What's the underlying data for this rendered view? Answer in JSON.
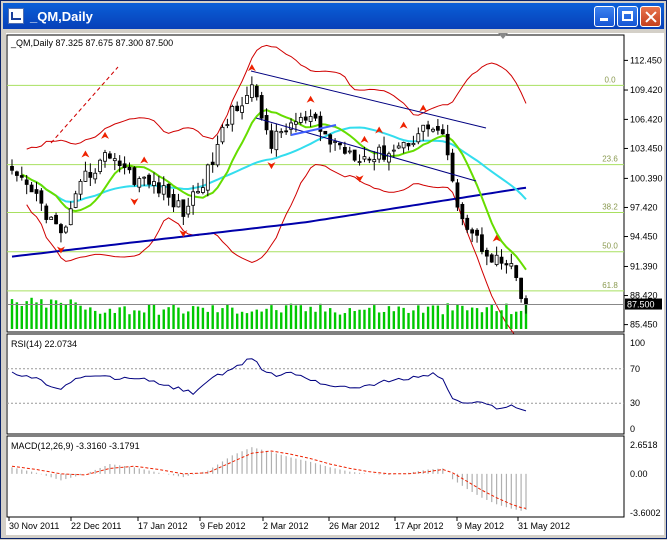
{
  "window": {
    "title": "_QM,Daily"
  },
  "main_pane": {
    "header": "_QM,Daily  87.325 87.675 87.300 87.500",
    "current_price_label": "87.500",
    "fib_levels": [
      {
        "label": "0.0",
        "value": 109.9
      },
      {
        "label": "23.6",
        "value": 101.8
      },
      {
        "label": "38.2",
        "value": 96.9
      },
      {
        "label": "50.0",
        "value": 92.9
      },
      {
        "label": "61.8",
        "value": 88.9
      }
    ]
  },
  "rsi_pane": {
    "header": "RSI(14) 22.0734",
    "levels": [
      "100",
      "70",
      "30",
      "0"
    ]
  },
  "macd_pane": {
    "header": "MACD(12,26,9) -3.3160 -3.1791",
    "levels": [
      "2.6518",
      "0.00",
      "-3.6002"
    ]
  },
  "colors": {
    "candle": "#000000",
    "volume": "#00c800",
    "bands": "#d00000",
    "ma_fast": "#66dd00",
    "ma_mid": "#33ddee",
    "ma_slow": "#0000aa",
    "fib": "#a8e060",
    "signal": "#ee2200",
    "macd_hist": "#b0b0b0"
  },
  "chart_data": [
    {
      "type": "candlestick",
      "title": "_QM,Daily",
      "ylim": [
        85.0,
        113.0
      ],
      "yticks": [
        "112.450",
        "109.420",
        "106.420",
        "103.450",
        "100.390",
        "97.420",
        "94.450",
        "91.390",
        "88.420",
        "85.450"
      ],
      "x_labels": [
        "30 Nov 2011",
        "22 Dec 2011",
        "17 Jan 2012",
        "9 Feb 2012",
        "2 Mar 2012",
        "26 Mar 2012",
        "17 Apr 2012",
        "9 May 2012",
        "31 May 2012"
      ],
      "close_path": [
        [
          0,
          100.6
        ],
        [
          5,
          98.5
        ],
        [
          10,
          94.5
        ],
        [
          15,
          100.5
        ],
        [
          20,
          103.0
        ],
        [
          25,
          100.5
        ],
        [
          30,
          99.5
        ],
        [
          35,
          97.0
        ],
        [
          40,
          101.0
        ],
        [
          45,
          107.5
        ],
        [
          49,
          109.5
        ],
        [
          53,
          104.0
        ],
        [
          57,
          106.0
        ],
        [
          61,
          106.3
        ],
        [
          65,
          104.2
        ],
        [
          69,
          103.2
        ],
        [
          73,
          102.5
        ],
        [
          77,
          103.2
        ],
        [
          81,
          104.2
        ],
        [
          85,
          105.8
        ],
        [
          88,
          105.0
        ],
        [
          90,
          99.5
        ],
        [
          93,
          95.5
        ],
        [
          96,
          93.5
        ],
        [
          99,
          92.0
        ],
        [
          102,
          91.2
        ],
        [
          104,
          88.0
        ],
        [
          105,
          87.5
        ]
      ],
      "n_bars": 106,
      "last_close": 87.5
    },
    {
      "type": "line",
      "title": "RSI(14) 22.0734",
      "ylim": [
        0,
        100
      ],
      "levels": [
        70,
        30
      ],
      "x_days": [
        0,
        5,
        8,
        10,
        12,
        15,
        18,
        22,
        26,
        30,
        34,
        37,
        40,
        42,
        45,
        47,
        49,
        51,
        54,
        57,
        60,
        64,
        68,
        72,
        76,
        80,
        84,
        86,
        88,
        90,
        93,
        96,
        99,
        102,
        104,
        105
      ],
      "values": [
        65,
        58,
        50,
        45,
        56,
        60,
        62,
        58,
        60,
        52,
        47,
        42,
        56,
        62,
        68,
        76,
        83,
        70,
        62,
        66,
        60,
        52,
        48,
        50,
        55,
        58,
        62,
        64,
        59,
        34,
        30,
        30,
        25,
        27,
        22,
        22.07
      ]
    },
    {
      "type": "bar",
      "title": "MACD(12,26,9) -3.3160 -3.1791",
      "ylim": [
        -3.6002,
        2.6518
      ],
      "hist_path": [
        [
          0,
          0.6
        ],
        [
          5,
          0.1
        ],
        [
          10,
          -0.6
        ],
        [
          15,
          0.0
        ],
        [
          20,
          0.9
        ],
        [
          25,
          0.6
        ],
        [
          30,
          0.1
        ],
        [
          35,
          -0.3
        ],
        [
          40,
          0.3
        ],
        [
          45,
          1.7
        ],
        [
          49,
          2.45
        ],
        [
          53,
          2.0
        ],
        [
          57,
          1.5
        ],
        [
          61,
          1.1
        ],
        [
          65,
          0.6
        ],
        [
          69,
          0.2
        ],
        [
          73,
          0.0
        ],
        [
          77,
          -0.1
        ],
        [
          81,
          0.1
        ],
        [
          85,
          0.4
        ],
        [
          88,
          0.5
        ],
        [
          90,
          -0.5
        ],
        [
          93,
          -1.4
        ],
        [
          96,
          -2.2
        ],
        [
          99,
          -2.8
        ],
        [
          102,
          -3.2
        ],
        [
          104,
          -3.4
        ],
        [
          105,
          -3.316
        ]
      ],
      "signal_path": [
        [
          0,
          0.7
        ],
        [
          5,
          0.4
        ],
        [
          10,
          0.0
        ],
        [
          15,
          -0.1
        ],
        [
          20,
          0.5
        ],
        [
          25,
          0.7
        ],
        [
          30,
          0.4
        ],
        [
          35,
          0.0
        ],
        [
          40,
          0.1
        ],
        [
          45,
          1.1
        ],
        [
          49,
          1.9
        ],
        [
          53,
          2.1
        ],
        [
          57,
          1.8
        ],
        [
          61,
          1.4
        ],
        [
          65,
          0.9
        ],
        [
          69,
          0.5
        ],
        [
          73,
          0.2
        ],
        [
          77,
          0.0
        ],
        [
          81,
          0.0
        ],
        [
          85,
          0.2
        ],
        [
          88,
          0.4
        ],
        [
          90,
          0.1
        ],
        [
          93,
          -0.7
        ],
        [
          96,
          -1.5
        ],
        [
          99,
          -2.2
        ],
        [
          102,
          -2.8
        ],
        [
          104,
          -3.1
        ],
        [
          105,
          -3.179
        ]
      ]
    }
  ]
}
